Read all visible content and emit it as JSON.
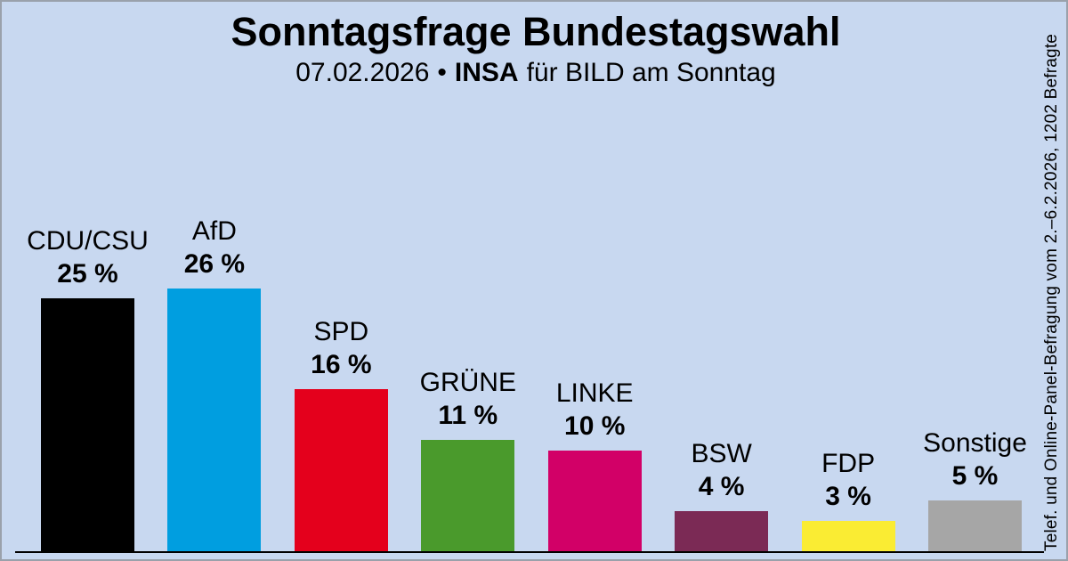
{
  "header": {
    "title": "Sonntagsfrage Bundestagswahl",
    "subtitle_date": "07.02.2026",
    "subtitle_separator": "•",
    "subtitle_institute": "INSA",
    "subtitle_client": "für BILD am Sonntag"
  },
  "side_note": "Telef. und Online-Panel-Befragung vom 2.–6.2.2026, 1202 Befragte",
  "colors": {
    "background": "#C8D8F0",
    "border": "#9AA1AB",
    "axis_line": "#000000",
    "text": "#000000"
  },
  "chart_data": {
    "type": "bar",
    "title": "Sonntagsfrage Bundestagswahl",
    "subtitle": "07.02.2026 • INSA für BILD am Sonntag",
    "xlabel": "",
    "ylabel": "",
    "ylim": [
      0,
      27.5
    ],
    "grid": false,
    "legend": false,
    "categories": [
      "CDU/CSU",
      "AfD",
      "SPD",
      "GRÜNE",
      "LINKE",
      "BSW",
      "FDP",
      "Sonstige"
    ],
    "values": [
      25,
      26,
      16,
      11,
      10,
      4,
      3,
      5
    ],
    "bars": [
      {
        "party": "CDU/CSU",
        "value": 25,
        "value_label": "25 %",
        "color": "#000000"
      },
      {
        "party": "AfD",
        "value": 26,
        "value_label": "26 %",
        "color": "#009EE0"
      },
      {
        "party": "SPD",
        "value": 16,
        "value_label": "16 %",
        "color": "#E4001C"
      },
      {
        "party": "GRÜNE",
        "value": 11,
        "value_label": "11 %",
        "color": "#4A9A2C"
      },
      {
        "party": "LINKE",
        "value": 10,
        "value_label": "10 %",
        "color": "#D20067"
      },
      {
        "party": "BSW",
        "value": 4,
        "value_label": "4 %",
        "color": "#7B2A55"
      },
      {
        "party": "FDP",
        "value": 3,
        "value_label": "3 %",
        "color": "#FAEC33"
      },
      {
        "party": "Sonstige",
        "value": 5,
        "value_label": "5 %",
        "color": "#A6A6A6"
      }
    ]
  }
}
